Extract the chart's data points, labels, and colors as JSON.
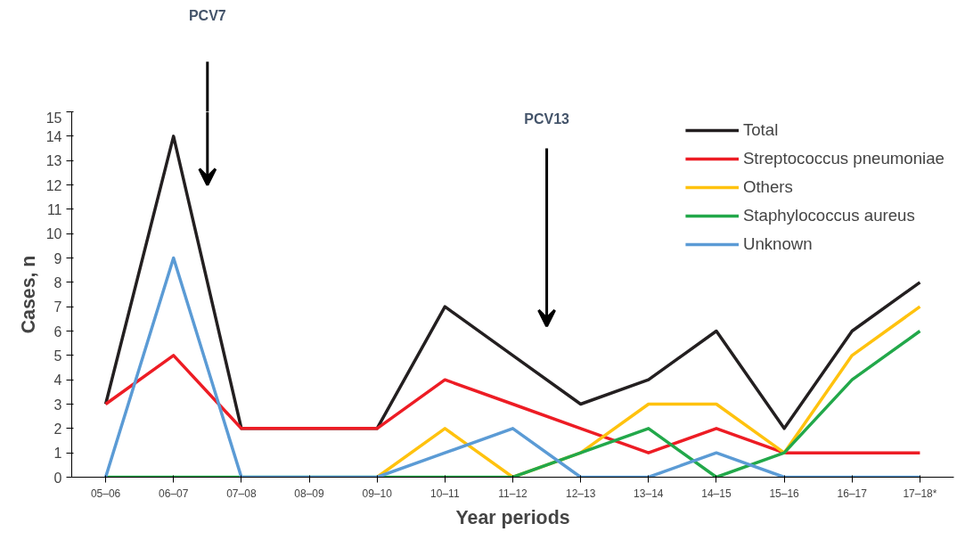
{
  "chart_data": {
    "type": "line",
    "xlabel": "Year periods",
    "ylabel": "Cases, n",
    "categories": [
      "05–06",
      "06–07",
      "07–08",
      "08–09",
      "09–10",
      "10–11",
      "11–12",
      "12–13",
      "13–14",
      "14–15",
      "15–16",
      "16–17",
      "17–18*"
    ],
    "series": [
      {
        "name": "Total",
        "color": "#231f20",
        "values": [
          3,
          14,
          2,
          2,
          2,
          7,
          5,
          3,
          4,
          6,
          2,
          6,
          8
        ]
      },
      {
        "name": "Streptococcus pneumoniae",
        "color": "#ed1c24",
        "values": [
          3,
          5,
          2,
          2,
          2,
          4,
          3,
          2,
          1,
          2,
          1,
          1,
          1
        ]
      },
      {
        "name": "Others",
        "color": "#ffc20e",
        "values": [
          null,
          null,
          null,
          null,
          0,
          2,
          0,
          1,
          3,
          3,
          1,
          5,
          7
        ]
      },
      {
        "name": "Staphylococcus aureus",
        "color": "#22a84a",
        "values": [
          0,
          0,
          0,
          0,
          0,
          0,
          0,
          1,
          2,
          0,
          1,
          4,
          6
        ]
      },
      {
        "name": "Unknown",
        "color": "#5b9bd5",
        "values": [
          0,
          9,
          0,
          0,
          0,
          1,
          2,
          0,
          0,
          1,
          0,
          0,
          0
        ]
      }
    ],
    "ylim": [
      0,
      15
    ],
    "yticks": [
      0,
      1,
      2,
      3,
      4,
      5,
      6,
      7,
      8,
      9,
      10,
      11,
      12,
      13,
      14,
      15
    ],
    "annotations": [
      "PCV7",
      "PCV13"
    ],
    "legend": "top right",
    "grid": false,
    "marker": "none",
    "line_style": "solid"
  }
}
